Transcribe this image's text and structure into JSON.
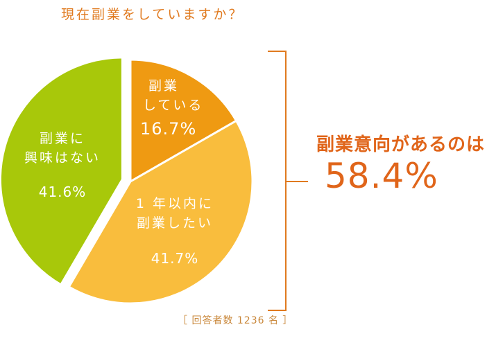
{
  "title": "現在副業をしていますか？",
  "chart_data": {
    "type": "pie",
    "slices": [
      {
        "label_lines": [
          "副業",
          "している"
        ],
        "value": 16.7,
        "value_label": "16.7%",
        "color": "#ef9a12"
      },
      {
        "label_lines": [
          "1 年以内に",
          "副業したい"
        ],
        "value": 41.7,
        "value_label": "41.7%",
        "color": "#f9bd3d"
      },
      {
        "label_lines": [
          "副業に",
          "興味はない"
        ],
        "value": 41.6,
        "value_label": "41.6%",
        "color": "#a8c80a"
      }
    ],
    "start_angle_deg": 0,
    "direction": "clockwise",
    "exploded_slice": 2
  },
  "callout": {
    "text": "副業意向があるのは",
    "value": "58.4%",
    "bracket_color": "#e07a1f"
  },
  "footnote": "［ 回答者数 1236 名 ］"
}
